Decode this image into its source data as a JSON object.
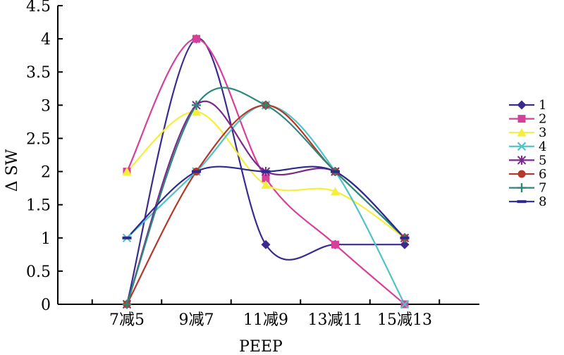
{
  "chart_data": {
    "type": "line",
    "categories": [
      "7减5",
      "9减7",
      "11减9",
      "13减11",
      "15减13"
    ],
    "xlabel": "PEEP",
    "ylabel": "Δ SW",
    "ylim": [
      0,
      4.5
    ],
    "yticks": [
      "0",
      "0.5",
      "1",
      "1.5",
      "2",
      "2.5",
      "3",
      "3.5",
      "4",
      "4.5"
    ],
    "grid": false,
    "legend_position": "right",
    "series": [
      {
        "name": "1",
        "color": "#3d2a8f",
        "marker": "diamond",
        "values": [
          0,
          4,
          0.9,
          0.9,
          0.9
        ]
      },
      {
        "name": "2",
        "color": "#d63f9a",
        "marker": "square",
        "values": [
          2,
          4,
          1.9,
          0.9,
          0
        ]
      },
      {
        "name": "3",
        "color": "#f5ee3a",
        "marker": "triangle",
        "values": [
          2,
          2.9,
          1.8,
          1.7,
          1
        ]
      },
      {
        "name": "4",
        "color": "#4fc3c7",
        "marker": "x",
        "values": [
          1,
          2,
          3,
          2,
          0
        ]
      },
      {
        "name": "5",
        "color": "#7a2a8a",
        "marker": "star",
        "values": [
          0,
          3,
          2,
          2,
          1
        ]
      },
      {
        "name": "6",
        "color": "#b5382a",
        "marker": "circle",
        "values": [
          0,
          2,
          3,
          2,
          1
        ]
      },
      {
        "name": "7",
        "color": "#2a8a7a",
        "marker": "plus",
        "values": [
          0,
          3,
          3,
          2,
          1
        ]
      },
      {
        "name": "8",
        "color": "#2a2a8f",
        "marker": "dash",
        "values": [
          1,
          2,
          2,
          2,
          1
        ]
      }
    ]
  }
}
